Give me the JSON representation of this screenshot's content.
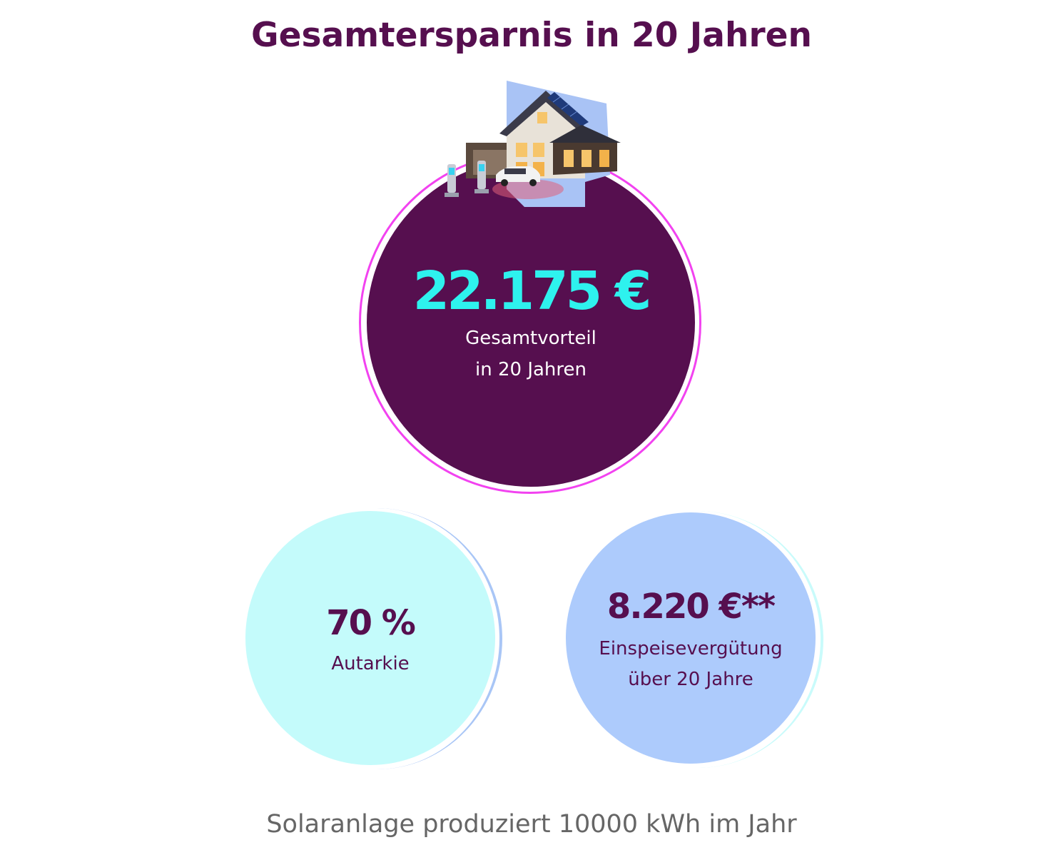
{
  "header": {
    "title": "Gesamtersparnis in 20 Jahren"
  },
  "main_stat": {
    "value": "22.175 €",
    "label_line1": "Gesamtvorteil",
    "label_line2": "in 20 Jahren",
    "illustration": "house-with-solar-panels-and-ev-chargers"
  },
  "stats": {
    "autarkie": {
      "value": "70 %",
      "label": "Autarkie"
    },
    "einspeise": {
      "value": "8.220 €**",
      "label_line1": "Einspeisevergütung",
      "label_line2": "über 20 Jahre"
    }
  },
  "footer": {
    "text": "Solaranlage produziert 10000 kWh im Jahr"
  },
  "colors": {
    "brand_purple": "#560f4f",
    "accent_cyan": "#2ef2ee",
    "ring_magenta": "#f242f0",
    "light_cyan": "#c4fbfb",
    "light_blue": "#adcbfc"
  }
}
